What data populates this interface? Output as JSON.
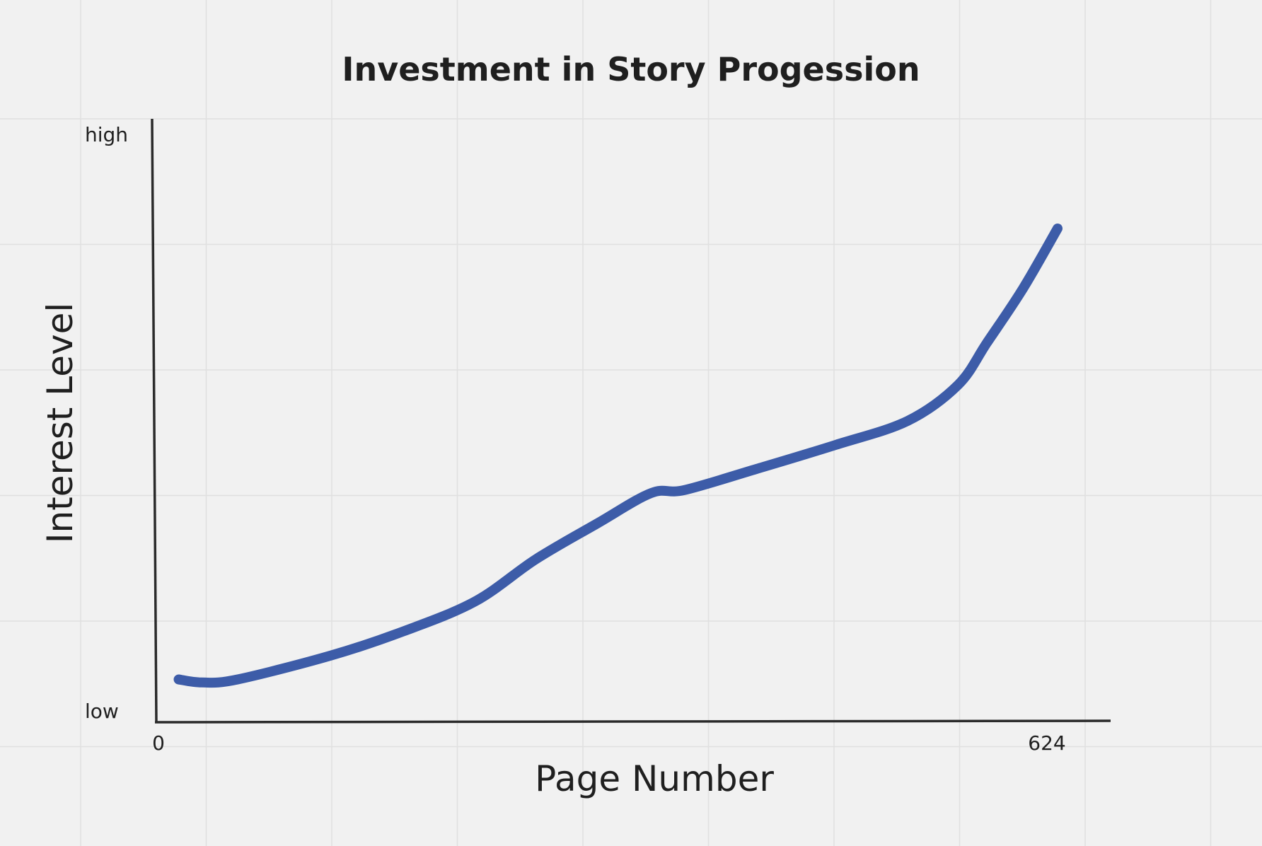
{
  "chart_data": {
    "type": "line",
    "title": "Investment in Story Progession",
    "xlabel": "Page Number",
    "ylabel": "Interest Level",
    "x_ticks": [
      "0",
      "624"
    ],
    "y_ticks": [
      "low",
      "high"
    ],
    "xlim": [
      0,
      624
    ],
    "ylim": [
      0,
      1
    ],
    "grid": true,
    "series": [
      {
        "x": [
          14,
          30,
          55,
          120,
          170,
          220,
          262,
          305,
          342,
          365,
          415,
          470,
          520,
          555,
          575,
          600,
          624
        ],
        "y": [
          0.07,
          0.065,
          0.07,
          0.11,
          0.15,
          0.2,
          0.27,
          0.33,
          0.38,
          0.385,
          0.42,
          0.46,
          0.5,
          0.56,
          0.63,
          0.72,
          0.82
        ]
      }
    ]
  },
  "colors": {
    "background": "#f1f1f1",
    "grid": "#e0e0e0",
    "axis": "#2b2b2b",
    "line": "#3d5ca8",
    "text": "#1f1f1f"
  }
}
